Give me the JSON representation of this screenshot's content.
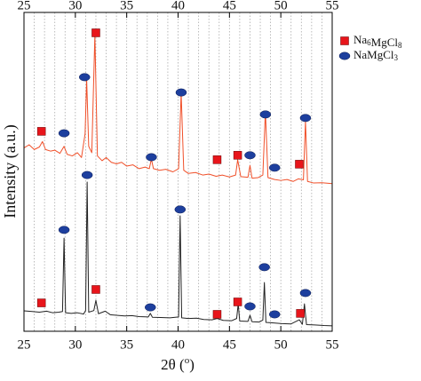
{
  "chart_data": {
    "type": "line",
    "xlabel": [
      "2θ (",
      "o",
      ")"
    ],
    "ylabel": "Intensity (a.u.)",
    "xlim": [
      25,
      55
    ],
    "xticks": [
      25,
      30,
      35,
      40,
      45,
      50,
      55
    ],
    "ylim": [
      0,
      100
    ],
    "xgrid": [
      26,
      27,
      28,
      29,
      30,
      31,
      32,
      33,
      34,
      35,
      36,
      37,
      38,
      39,
      40,
      41,
      42,
      43,
      44,
      45,
      46,
      47,
      48,
      49,
      50,
      51,
      52,
      53,
      54
    ],
    "series": [
      {
        "color": "#f0502a",
        "x": [
          25,
          25.5,
          26,
          26.5,
          26.8,
          27.1,
          27.6,
          28,
          28.5,
          28.9,
          29.2,
          29.7,
          30.2,
          30.6,
          30.95,
          31.1,
          31.3,
          31.6,
          31.9,
          32.15,
          32.6,
          33,
          33.5,
          34,
          34.5,
          35,
          35.6,
          36.2,
          36.8,
          37.2,
          37.4,
          37.6,
          38.2,
          38.8,
          39.5,
          40.05,
          40.3,
          40.55,
          41,
          41.7,
          42.4,
          43,
          43.7,
          44.3,
          45,
          45.6,
          45.8,
          46.1,
          46.8,
          47,
          47.2,
          47.8,
          48.25,
          48.5,
          48.75,
          49.4,
          50,
          50.6,
          51.2,
          51.7,
          52.2,
          52.4,
          52.6,
          53.2,
          54,
          55
        ],
        "values": [
          57.5,
          58.5,
          57,
          57.8,
          59.5,
          57,
          56.5,
          56.8,
          55.8,
          58,
          55.5,
          55,
          56,
          54.5,
          62,
          79,
          58,
          56,
          92.8,
          55,
          53.5,
          54.5,
          53,
          52.5,
          53,
          51.8,
          52.2,
          51,
          51.5,
          51,
          54,
          51,
          50.5,
          50.8,
          50,
          51,
          74.7,
          50.5,
          49.5,
          49.8,
          49,
          49.3,
          48.6,
          49,
          48.4,
          49,
          53.8,
          48.5,
          48.3,
          52,
          48,
          48.2,
          49,
          69,
          48.2,
          47.6,
          47.3,
          47.6,
          47,
          47.8,
          47.5,
          66,
          47,
          46.5,
          46.6,
          46.3
        ]
      },
      {
        "color": "#222222",
        "x": [
          25,
          25.8,
          26.5,
          27.2,
          27.8,
          28.4,
          28.75,
          28.9,
          29.05,
          29.6,
          30.2,
          30.8,
          31.0,
          31.15,
          31.3,
          31.8,
          32,
          32.25,
          32.9,
          33.4,
          34,
          34.8,
          35.5,
          36.2,
          37.1,
          37.3,
          37.5,
          38.3,
          39.2,
          40.05,
          40.2,
          40.35,
          41,
          41.8,
          42.5,
          43.3,
          43.8,
          44.4,
          45.2,
          45.7,
          45.85,
          46,
          46.8,
          47,
          47.2,
          47.9,
          48.25,
          48.4,
          48.55,
          49.3,
          50.1,
          51,
          51.8,
          52.1,
          52.3,
          52.5,
          53.3,
          54.2,
          55
        ],
        "values": [
          6.4,
          6.2,
          6.0,
          6.3,
          5.8,
          6.0,
          6.2,
          29.2,
          5.8,
          5.6,
          5.8,
          5.4,
          6.5,
          46.8,
          6,
          6.5,
          9.7,
          5.5,
          6.3,
          5.2,
          5.0,
          4.8,
          4.9,
          4.6,
          4.5,
          5.6,
          4.4,
          4.3,
          4.2,
          4.5,
          36.2,
          4.2,
          4.0,
          4.1,
          3.7,
          3.6,
          4.0,
          3.4,
          3.3,
          4,
          8.6,
          3.2,
          3.1,
          5.0,
          3.0,
          2.9,
          3.5,
          15.3,
          2.8,
          2.6,
          2.4,
          2.3,
          3.6,
          2.2,
          8.6,
          2.1,
          2.0,
          1.8,
          1.7
        ]
      }
    ],
    "markers": [
      {
        "name": "Na6MgCl8",
        "shape": "square",
        "color": "#e8151b",
        "x": [
          26.7,
          32,
          43.8,
          45.8,
          51.8,
          26.7,
          32,
          43.8,
          45.8,
          51.9
        ],
        "y": [
          62.7,
          93.6,
          53.8,
          55.2,
          52.4,
          8.9,
          13.1,
          5.3,
          9.2,
          5.6
        ]
      },
      {
        "name": "NaMgCl3",
        "shape": "ellipse",
        "color": "#1d3f9e",
        "x": [
          28.9,
          30.9,
          37.4,
          40.3,
          47,
          48.5,
          49.4,
          52.4,
          28.9,
          31.15,
          37.3,
          40.2,
          47,
          48.4,
          49.4,
          52.4
        ],
        "y": [
          62.1,
          79.7,
          54.6,
          74.9,
          55.2,
          68,
          51.3,
          66.9,
          31.8,
          49,
          7.5,
          38.2,
          7.8,
          20.1,
          5.3,
          12
        ]
      }
    ]
  }
}
